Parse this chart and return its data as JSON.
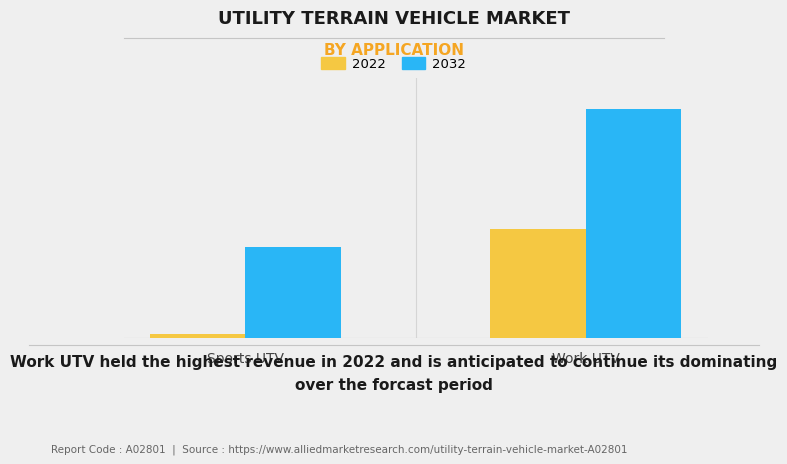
{
  "title": "UTILITY TERRAIN VEHICLE MARKET",
  "subtitle": "BY APPLICATION",
  "subtitle_color": "#F5A623",
  "categories": [
    "Sports UTV",
    "Work UTV"
  ],
  "series": [
    {
      "label": "2022",
      "color": "#F5C842",
      "values": [
        0.15,
        4.2
      ]
    },
    {
      "label": "2032",
      "color": "#29B6F6",
      "values": [
        3.5,
        8.8
      ]
    }
  ],
  "bar_width": 0.28,
  "background_color": "#EFEFEF",
  "plot_background": "#EFEFEF",
  "title_fontsize": 13,
  "subtitle_fontsize": 11,
  "legend_fontsize": 9.5,
  "tick_fontsize": 10,
  "annotation_text": "Work UTV held the highest revenue in 2022 and is anticipated to continue its dominating\nover the forcast period",
  "annotation_fontsize": 11,
  "footer_text": "Report Code : A02801  |  Source : https://www.alliedmarketresearch.com/utility-terrain-vehicle-market-A02801",
  "footer_fontsize": 7.5,
  "ylim": [
    0,
    10
  ],
  "grid_color": "#D5D5D5",
  "separator_color": "#C5C5C5"
}
